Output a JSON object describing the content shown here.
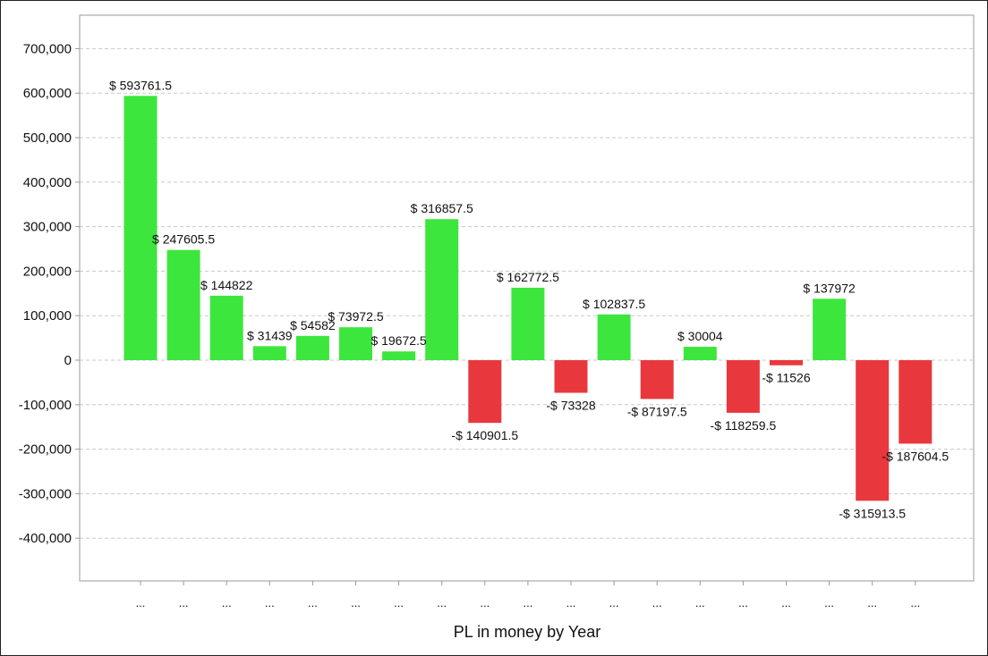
{
  "chart_data": {
    "type": "bar",
    "xlabel": "PL in money by Year",
    "ylabel": "",
    "ylim": [
      -500000,
      750000
    ],
    "yticks": [
      700000,
      600000,
      500000,
      400000,
      300000,
      200000,
      100000,
      0,
      -100000,
      -200000,
      -300000,
      -400000
    ],
    "ytick_labels": [
      "700,000",
      "600,000",
      "500,000",
      "400,000",
      "300,000",
      "200,000",
      "100,000",
      "0",
      "-100,000",
      "-200,000",
      "-300,000",
      "-400,000"
    ],
    "grid": true,
    "colors": {
      "positive": "#3de63d",
      "negative": "#e8383d"
    },
    "categories": [
      "...",
      "...",
      "...",
      "...",
      "...",
      "...",
      "...",
      "...",
      "...",
      "...",
      "...",
      "...",
      "...",
      "...",
      "...",
      "...",
      "...",
      "...",
      "..."
    ],
    "values": [
      593761.5,
      247605.5,
      144822,
      31439,
      54582,
      73972.5,
      19672.5,
      316857.5,
      -140901.5,
      162772.5,
      -73328,
      102837.5,
      -87197.5,
      30004,
      -118259.5,
      -11526,
      137972,
      -315913.5,
      -187604.5
    ],
    "data_labels": [
      "$ 593761.5",
      "$ 247605.5",
      "$ 144822",
      "$ 31439",
      "$ 54582",
      "$ 73972.5",
      "$ 19672.5",
      "$ 316857.5",
      "-$ 140901.5",
      "$ 162772.5",
      "-$ 73328",
      "$ 102837.5",
      "-$ 87197.5",
      "$ 30004",
      "-$ 118259.5",
      "-$ 11526",
      "$ 137972",
      "-$ 315913.5",
      "-$ 187604.5"
    ]
  }
}
